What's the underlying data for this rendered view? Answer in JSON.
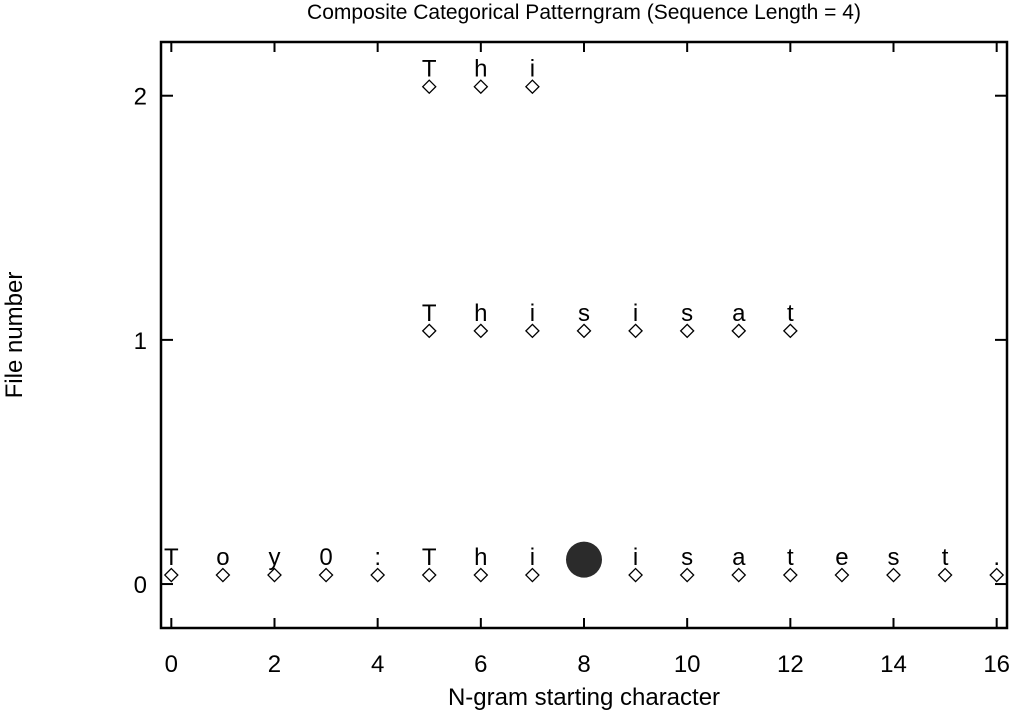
{
  "chart_data": {
    "type": "scatter",
    "title": "Composite Categorical Patterngram (Sequence Length = 4)",
    "xlabel": "N-gram starting character",
    "ylabel": "File number",
    "xlim": [
      -0.2,
      16.2
    ],
    "ylim": [
      -0.18,
      2.22
    ],
    "xticks": [
      0,
      2,
      4,
      6,
      8,
      10,
      12,
      14,
      16
    ],
    "yticks": [
      0,
      1,
      2
    ],
    "grid": false,
    "series": [
      {
        "y": 0,
        "points": [
          {
            "x": 0,
            "label": "T"
          },
          {
            "x": 1,
            "label": "o"
          },
          {
            "x": 2,
            "label": "y"
          },
          {
            "x": 3,
            "label": "0"
          },
          {
            "x": 4,
            "label": ":"
          },
          {
            "x": 5,
            "label": "T"
          },
          {
            "x": 6,
            "label": "h"
          },
          {
            "x": 7,
            "label": "i"
          },
          {
            "x": 9,
            "label": "i"
          },
          {
            "x": 10,
            "label": "s"
          },
          {
            "x": 11,
            "label": "a"
          },
          {
            "x": 12,
            "label": "t"
          },
          {
            "x": 13,
            "label": "e"
          },
          {
            "x": 14,
            "label": "s"
          },
          {
            "x": 15,
            "label": "t"
          },
          {
            "x": 16,
            "label": "."
          }
        ]
      },
      {
        "y": 1,
        "points": [
          {
            "x": 5,
            "label": "T"
          },
          {
            "x": 6,
            "label": "h"
          },
          {
            "x": 7,
            "label": "i"
          },
          {
            "x": 8,
            "label": "s"
          },
          {
            "x": 9,
            "label": "i"
          },
          {
            "x": 10,
            "label": "s"
          },
          {
            "x": 11,
            "label": "a"
          },
          {
            "x": 12,
            "label": "t"
          }
        ]
      },
      {
        "y": 2,
        "points": [
          {
            "x": 5,
            "label": "T"
          },
          {
            "x": 6,
            "label": "h"
          },
          {
            "x": 7,
            "label": "i"
          }
        ]
      }
    ],
    "highlight": {
      "x": 8,
      "y": 0.1
    }
  }
}
